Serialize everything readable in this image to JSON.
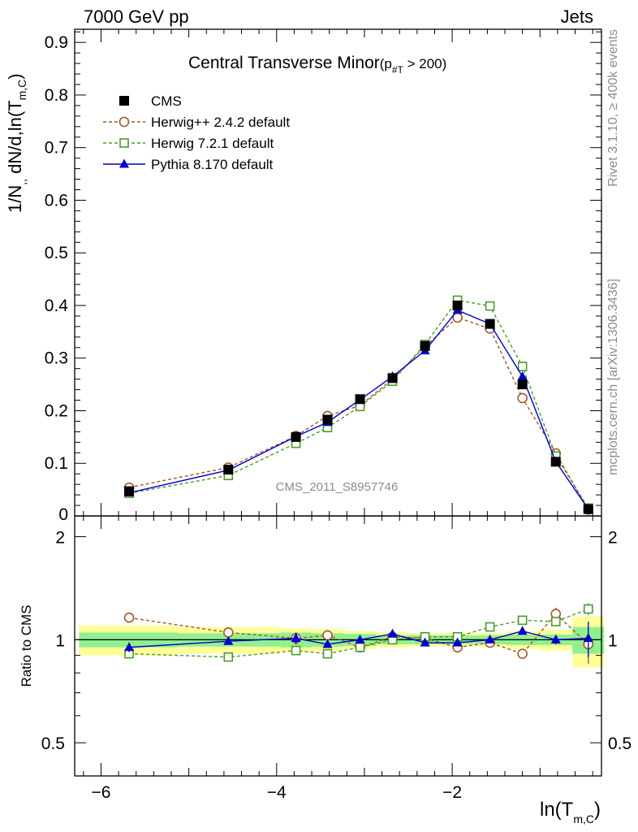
{
  "header": {
    "left": "7000 GeV pp",
    "right": "Jets"
  },
  "side_text": {
    "rivet": "Rivet 3.1.10, ≥ 400k events",
    "mcplots": "mcplots.cern.ch [arXiv:1306.3436]"
  },
  "watermark": "CMS_2011_S8957746",
  "chart_data": {
    "type": "line",
    "title": "Central Transverse Minor",
    "title_cut": {
      "main": "(p",
      "sub": "#T",
      "rest": "  > 200)"
    },
    "ylabel": {
      "main": "1/N",
      "sub1": ",,",
      "mid": " dN/d,ln(T",
      "sub2": "m,C",
      "tail": ")"
    },
    "xlabel": {
      "main": "ln(T",
      "sub": "m,C",
      "tail": ")"
    },
    "ratio_ylabel": "Ratio to CMS",
    "xlim": [
      -6.3,
      -0.3
    ],
    "ylim": [
      0,
      0.925
    ],
    "ratio_ylim": [
      0.4,
      2.3
    ],
    "ratio_log": true,
    "x_ticks": [
      -6,
      -4,
      -2
    ],
    "x_tick_labels": [
      "−6",
      "−4",
      "−2"
    ],
    "y_ticks": [
      0.1,
      0.2,
      0.3,
      0.4,
      0.5,
      0.6,
      0.7,
      0.8,
      0.9
    ],
    "y_tick_labels": [
      "0.1",
      "0.2",
      "0.3",
      "0.4",
      "0.5",
      "0.6",
      "0.7",
      "0.8",
      "0.9"
    ],
    "y_zero_label": "0",
    "ratio_ticks": [
      0.5,
      1,
      2
    ],
    "ratio_tick_labels": [
      "0.5",
      "1",
      "2"
    ],
    "x": [
      -5.68,
      -4.55,
      -3.78,
      -3.42,
      -3.05,
      -2.68,
      -2.31,
      -1.94,
      -1.57,
      -1.2,
      -0.82,
      -0.45
    ],
    "bin_edges": [
      -6.25,
      -5.13,
      -3.96,
      -3.6,
      -3.24,
      -2.87,
      -2.5,
      -2.12,
      -1.75,
      -1.38,
      -1.01,
      -0.63,
      -0.27
    ],
    "band_inner": [
      0.05,
      0.045,
      0.05,
      0.045,
      0.04,
      0.03,
      0.03,
      0.03,
      0.03,
      0.035,
      0.035,
      0.09
    ],
    "band_outer": [
      0.1,
      0.09,
      0.08,
      0.075,
      0.06,
      0.05,
      0.045,
      0.045,
      0.045,
      0.06,
      0.07,
      0.17
    ],
    "legend_position": "top-left",
    "series": [
      {
        "name": "CMS",
        "color": "#000000",
        "marker": "square-filled",
        "style": "none",
        "values": [
          0.047,
          0.088,
          0.15,
          0.183,
          0.222,
          0.262,
          0.323,
          0.4,
          0.365,
          0.25,
          0.103,
          0.013
        ],
        "ratio": []
      },
      {
        "name": "Herwig++ 2.4.2 default",
        "color": "#a65628",
        "marker": "circle-open",
        "style": "dashed",
        "values": [
          0.054,
          0.092,
          0.152,
          0.19,
          0.21,
          0.26,
          0.322,
          0.377,
          0.356,
          0.224,
          0.119,
          0.012
        ],
        "ratio": [
          1.16,
          1.05,
          1.01,
          1.03,
          0.95,
          1.02,
          1.01,
          0.95,
          0.98,
          0.91,
          1.19,
          0.97
        ],
        "ratio_err": [
          0.03,
          0.01,
          0.02,
          0.03,
          0.01,
          0.01,
          0.01,
          0.01,
          0.01,
          0.01,
          0.05,
          0.12
        ]
      },
      {
        "name": "Herwig 7.2.1 default",
        "color": "#4c9a2a",
        "marker": "square-open",
        "style": "dashed",
        "values": [
          0.043,
          0.077,
          0.138,
          0.168,
          0.208,
          0.256,
          0.326,
          0.41,
          0.399,
          0.284,
          0.114,
          0.015
        ],
        "ratio": [
          0.91,
          0.89,
          0.93,
          0.91,
          0.95,
          1.0,
          1.02,
          1.02,
          1.09,
          1.14,
          1.13,
          1.23
        ],
        "ratio_err": [
          0.01,
          0.01,
          0.01,
          0.01,
          0.01,
          0.01,
          0.01,
          0.01,
          0.01,
          0.01,
          0.02,
          0.05
        ]
      },
      {
        "name": "Pythia 8.170 default",
        "color": "#0000cc",
        "marker": "triangle-filled",
        "style": "solid",
        "values": [
          0.044,
          0.087,
          0.151,
          0.178,
          0.221,
          0.265,
          0.314,
          0.391,
          0.365,
          0.265,
          0.103,
          0.013
        ],
        "ratio": [
          0.95,
          0.99,
          1.01,
          0.97,
          1.0,
          1.04,
          0.98,
          0.98,
          1.0,
          1.06,
          1.0,
          1.01
        ],
        "ratio_err": [
          0.03,
          0.01,
          0.04,
          0.02,
          0.02,
          0.02,
          0.01,
          0.01,
          0.01,
          0.02,
          0.03,
          0.12
        ]
      }
    ]
  }
}
